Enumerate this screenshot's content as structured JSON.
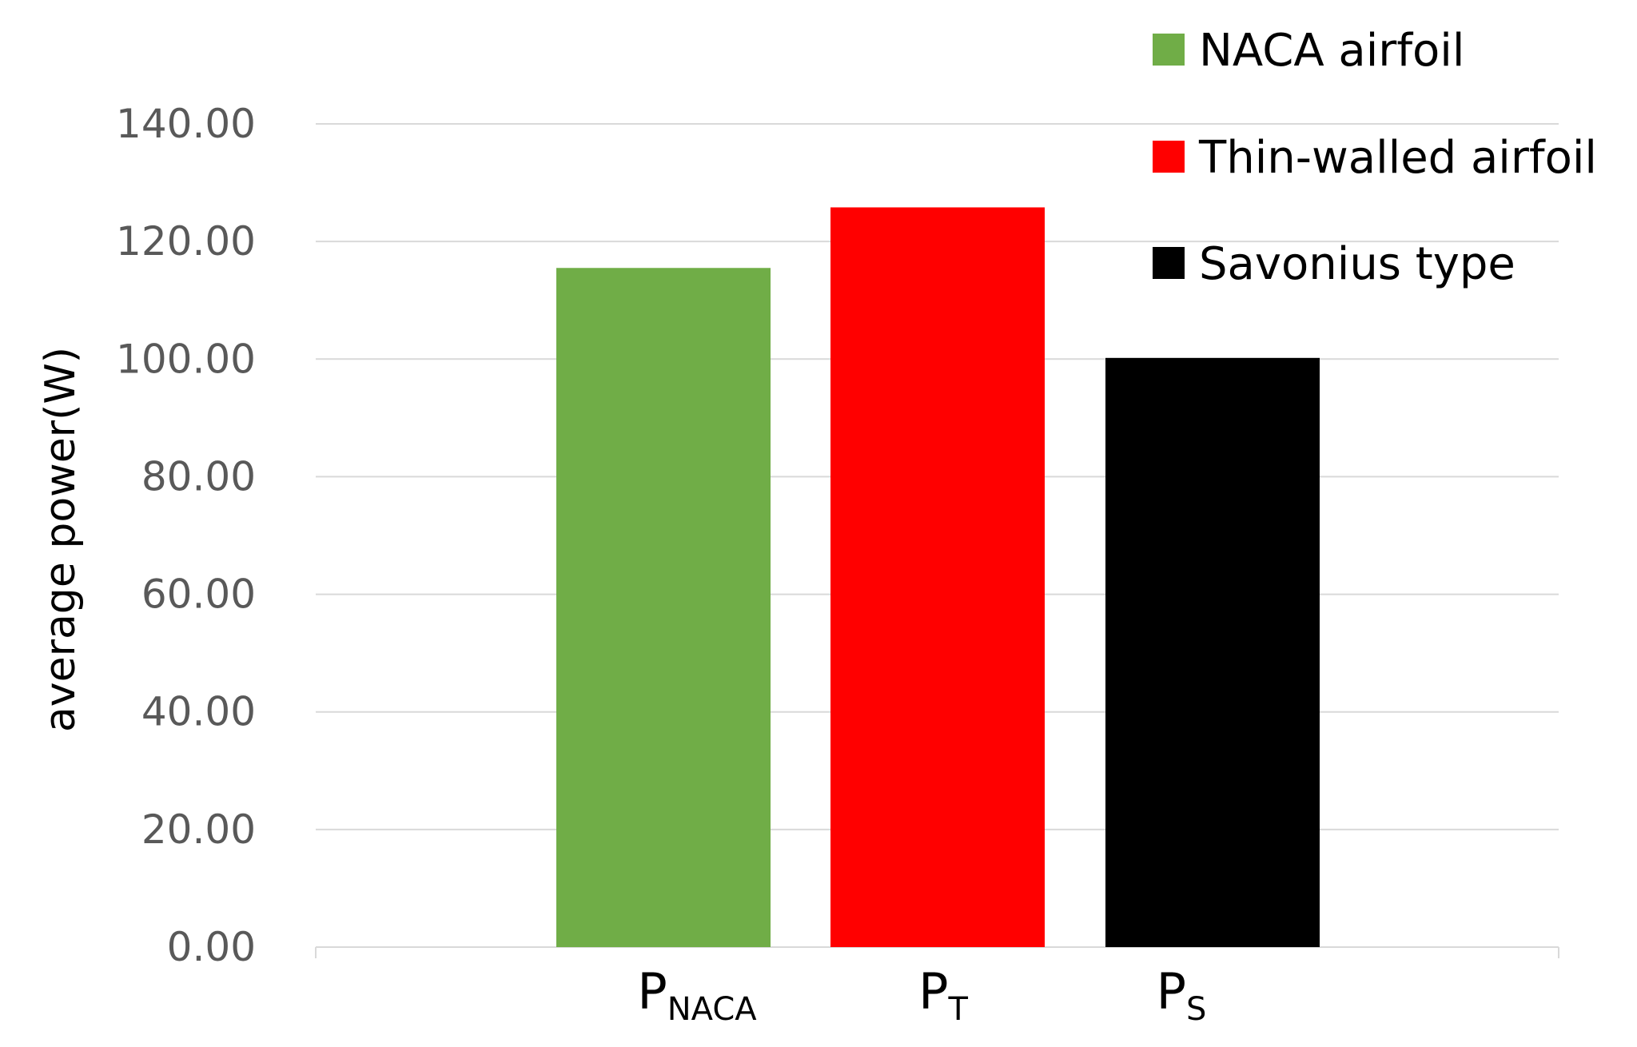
{
  "chart_data": {
    "type": "bar",
    "ylabel": "average power(W)",
    "ylim": [
      0,
      140
    ],
    "yticks": [
      "0.00",
      "20.00",
      "40.00",
      "60.00",
      "80.00",
      "100.00",
      "120.00",
      "140.00"
    ],
    "ytick_values": [
      0,
      20,
      40,
      60,
      80,
      100,
      120,
      140
    ],
    "grid": true,
    "legend_position": "top-right",
    "categories": [
      {
        "main": "P",
        "sub": "NACA"
      },
      {
        "main": "P",
        "sub": "T"
      },
      {
        "main": "P",
        "sub": "S"
      }
    ],
    "values": [
      115.5,
      125.8,
      100.2
    ],
    "colors": [
      "#70ad47",
      "#ff0000",
      "#000000"
    ],
    "legend": [
      {
        "label": "NACA airfoil",
        "color": "#70ad47"
      },
      {
        "label": "Thin-walled airfoil",
        "color": "#ff0000"
      },
      {
        "label": "Savonius type",
        "color": "#000000"
      }
    ]
  }
}
